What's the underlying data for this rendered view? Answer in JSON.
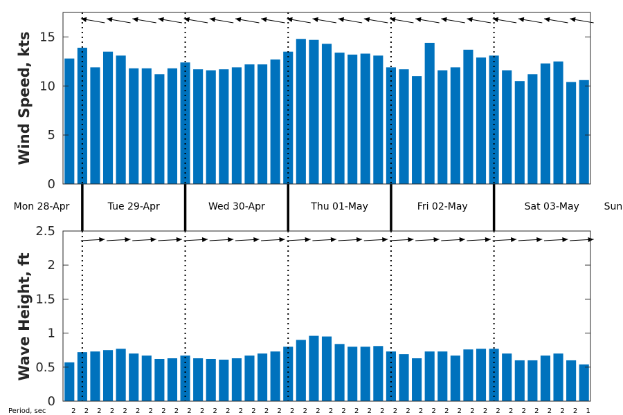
{
  "chart_data": [
    {
      "type": "bar",
      "ylabel": "Wind Speed, kts",
      "ylim": [
        0,
        17.5
      ],
      "yticks": [
        0,
        5,
        10,
        15
      ],
      "color": "#0072BD",
      "values": [
        12.8,
        13.9,
        11.9,
        13.5,
        13.1,
        11.8,
        11.8,
        11.2,
        11.8,
        12.4,
        11.7,
        11.6,
        11.7,
        11.9,
        12.2,
        12.2,
        12.7,
        13.5,
        14.8,
        14.7,
        14.3,
        13.4,
        13.2,
        13.3,
        13.1,
        11.9,
        11.7,
        11.0,
        14.4,
        11.6,
        11.9,
        13.7,
        12.9,
        13.1,
        11.6,
        10.5,
        11.2,
        12.3,
        12.5,
        10.4,
        10.6
      ],
      "direction_arrows": "wind direction arrows, pointing west / slightly northwest"
    },
    {
      "type": "bar",
      "ylabel": "Wave Height, ft",
      "ylim": [
        0,
        2.5
      ],
      "yticks": [
        "0",
        "0.5",
        "1",
        "1.5",
        "2",
        "2.5"
      ],
      "color": "#0072BD",
      "values": [
        0.57,
        0.72,
        0.73,
        0.75,
        0.77,
        0.7,
        0.67,
        0.62,
        0.63,
        0.67,
        0.63,
        0.62,
        0.61,
        0.63,
        0.67,
        0.7,
        0.73,
        0.8,
        0.9,
        0.96,
        0.95,
        0.84,
        0.8,
        0.8,
        0.81,
        0.73,
        0.69,
        0.63,
        0.73,
        0.73,
        0.67,
        0.76,
        0.77,
        0.77,
        0.7,
        0.6,
        0.6,
        0.67,
        0.7,
        0.6,
        0.54
      ],
      "direction_arrows": "wave direction arrows, pointing east"
    }
  ],
  "days": [
    "Mon 28-Apr",
    "Tue 29-Apr",
    "Wed 30-Apr",
    "Thu 01-May",
    "Fri 02-May",
    "Sat 03-May",
    "Sun"
  ],
  "period": {
    "label": "Period, sec",
    "values": [
      "2",
      "2",
      "2",
      "2",
      "2",
      "2",
      "2",
      "2",
      "2",
      "2",
      "2",
      "2",
      "2",
      "2",
      "2",
      "2",
      "2",
      "2",
      "2",
      "2",
      "2",
      "2",
      "2",
      "2",
      "2",
      "2",
      "2",
      "2",
      "2",
      "2",
      "2",
      "2",
      "2",
      "2",
      "2",
      "2",
      "2",
      "2",
      "2",
      "2",
      "1"
    ]
  }
}
